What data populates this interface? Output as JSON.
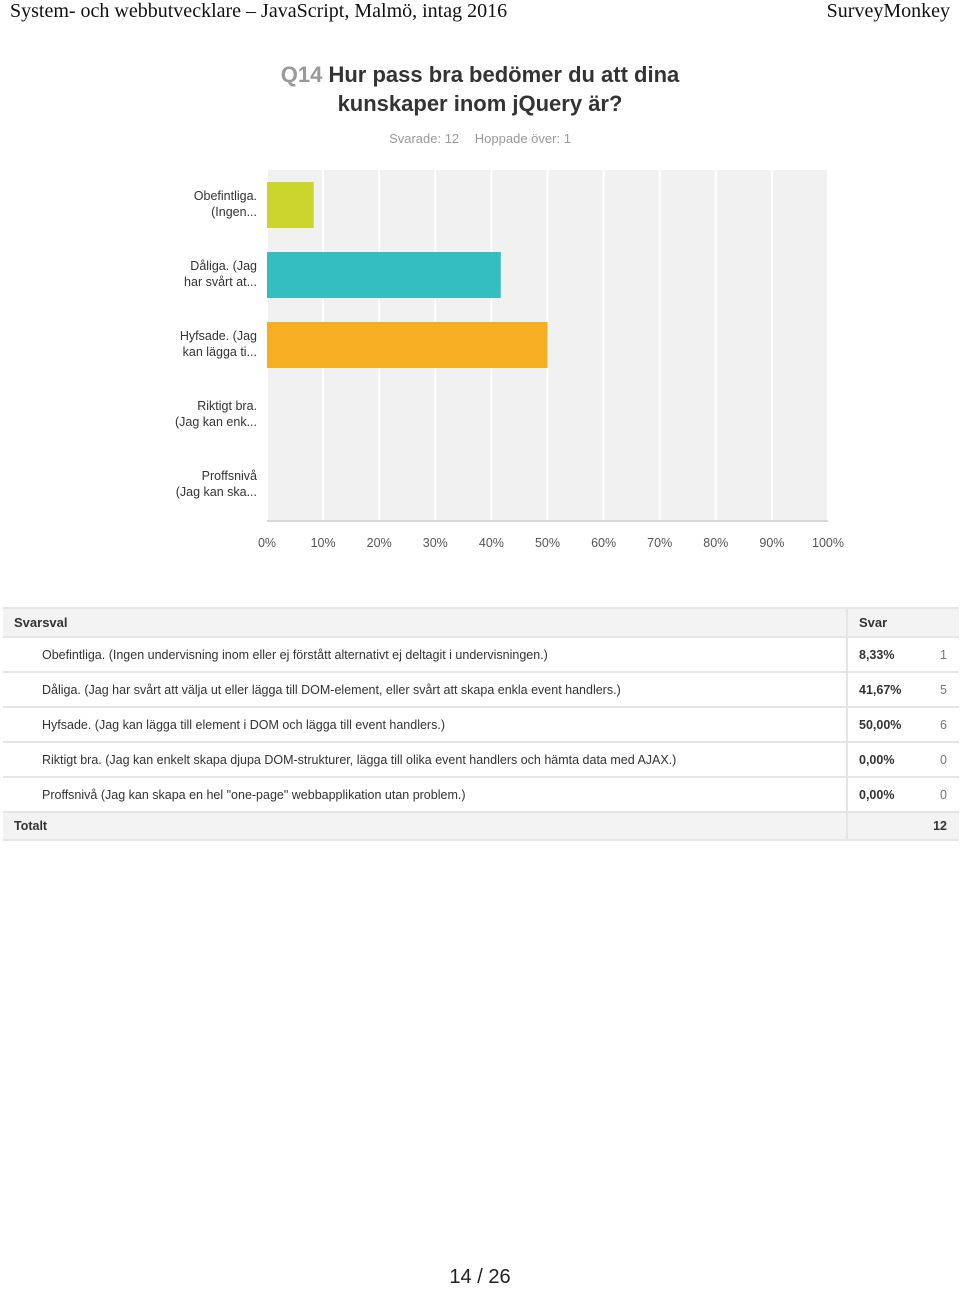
{
  "header": {
    "left": "System- och webbutvecklare – JavaScript, Malmö, intag 2016",
    "right": "SurveyMonkey"
  },
  "question": {
    "number": "Q14",
    "line1": "Hur pass bra bedömer du att dina",
    "line2": "kunskaper inom jQuery är?"
  },
  "stats": {
    "answered": "Svarade: 12",
    "skipped": "Hoppade över: 1"
  },
  "chart_data": {
    "type": "bar",
    "orientation": "horizontal",
    "categories": [
      [
        "Obefintliga.",
        "(Ingen..."
      ],
      [
        "Dåliga. (Jag",
        "har svårt at..."
      ],
      [
        "Hyfsade. (Jag",
        "kan lägga ti..."
      ],
      [
        "Riktigt bra.",
        "(Jag kan enk..."
      ],
      [
        "Proffsnivå",
        "(Jag kan ska..."
      ]
    ],
    "values": [
      8.33,
      41.67,
      50.0,
      0,
      0
    ],
    "colors": [
      "#ccd52b",
      "#35bebf",
      "#f6af20",
      "#999999",
      "#999999"
    ],
    "xlim": [
      0,
      100
    ],
    "x_ticks": [
      "0%",
      "10%",
      "20%",
      "30%",
      "40%",
      "50%",
      "60%",
      "70%",
      "80%",
      "90%",
      "100%"
    ],
    "grid": true,
    "grid_color": "#ffffff",
    "background_color": "#f1f1f1"
  },
  "table": {
    "headers": {
      "option": "Svarsval",
      "answer": "Svar"
    },
    "rows": [
      {
        "option": "Obefintliga. (Ingen undervisning inom eller ej förstått alternativt ej deltagit i undervisningen.)",
        "percent": "8,33%",
        "count": "1"
      },
      {
        "option": "Dåliga. (Jag har svårt att välja ut eller lägga till DOM-element, eller svårt att skapa enkla event handlers.)",
        "percent": "41,67%",
        "count": "5"
      },
      {
        "option": "Hyfsade. (Jag kan lägga till element i DOM och lägga till event handlers.)",
        "percent": "50,00%",
        "count": "6"
      },
      {
        "option": "Riktigt bra. (Jag kan enkelt skapa djupa DOM-strukturer, lägga till olika event handlers och hämta data med AJAX.)",
        "percent": "0,00%",
        "count": "0"
      },
      {
        "option": "Proffsnivå (Jag kan skapa en hel \"one-page\" webbapplikation utan problem.)",
        "percent": "0,00%",
        "count": "0"
      }
    ],
    "total_label": "Totalt",
    "total_value": "12"
  },
  "page_number": "14 / 26"
}
